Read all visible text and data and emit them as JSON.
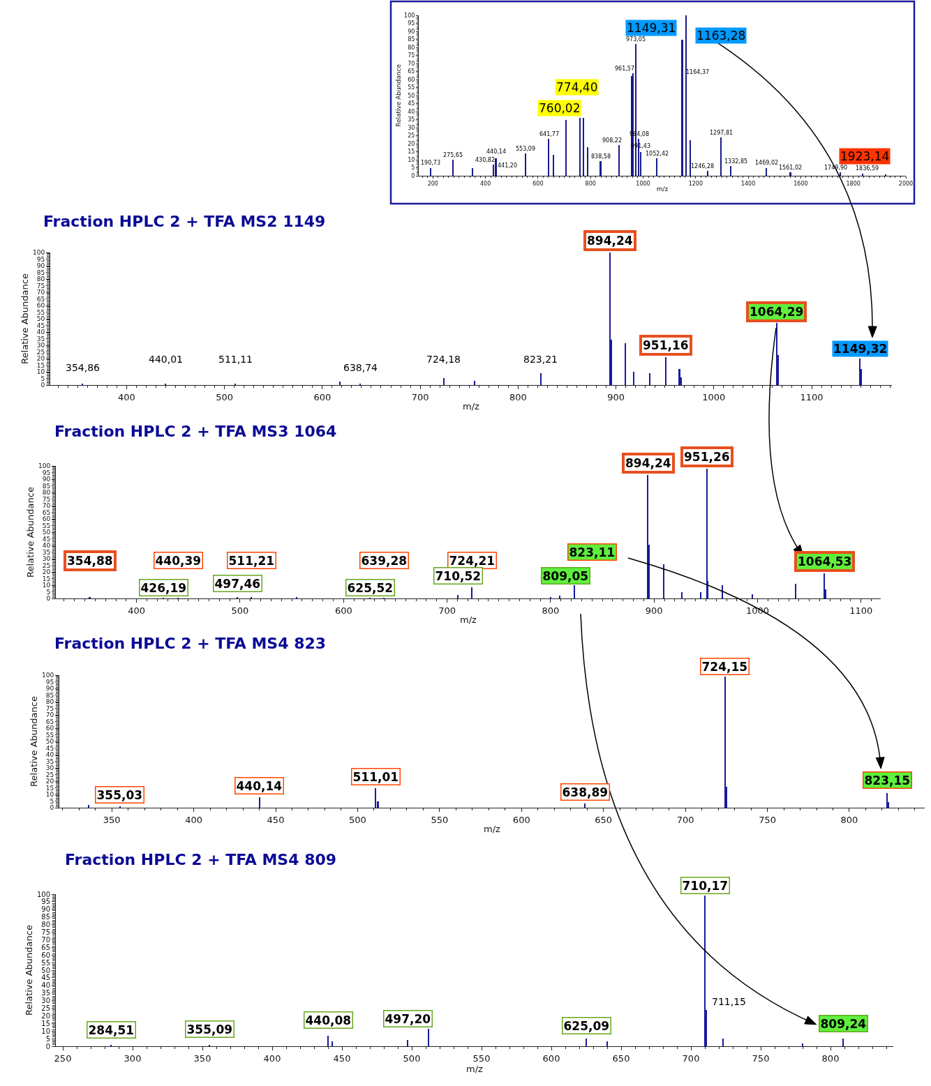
{
  "chart_data": [
    {
      "type": "bar",
      "title": "Fraction HPLC 2 + TFA MS2 1149",
      "xlabel": "m/z",
      "ylabel": "Relative Abundance",
      "color": "#1a1a9c",
      "x": [
        354.86,
        440.01,
        511.11,
        618,
        638.74,
        724.18,
        756,
        823.21,
        894.24,
        895.8,
        910,
        918.6,
        935,
        951.16,
        965,
        967,
        1064.29,
        1066,
        1149.32,
        1151
      ],
      "values": [
        1,
        1,
        1,
        2.5,
        1,
        5.5,
        3,
        8.8,
        100,
        34,
        31.5,
        10,
        9,
        21,
        12,
        6,
        46.6,
        22.7,
        20,
        12
      ],
      "xlim": [
        322,
        1182
      ],
      "ylim": [
        0,
        100
      ],
      "xticks": [
        400,
        500,
        600,
        700,
        800,
        900,
        1000,
        1100
      ],
      "yticks": [
        0,
        5,
        10,
        15,
        20,
        25,
        30,
        35,
        40,
        45,
        50,
        55,
        60,
        65,
        70,
        75,
        80,
        85,
        90,
        95,
        100
      ],
      "annotations": [
        {
          "text": "894,24",
          "x": 894.24,
          "y": 100
        },
        {
          "text": "951,16",
          "x": 951.16,
          "y": 21
        },
        {
          "text": "1064,29",
          "x": 1064.29,
          "y": 46.6
        },
        {
          "text": "1149,32",
          "x": 1149.32,
          "y": 20
        },
        {
          "text": "354,86",
          "x": 354.86,
          "y": 1
        },
        {
          "text": "440,01",
          "x": 440.01,
          "y": 1
        },
        {
          "text": "511,11",
          "x": 511.11,
          "y": 1
        },
        {
          "text": "638,74",
          "x": 638.74,
          "y": 1
        },
        {
          "text": "724,18",
          "x": 724.18,
          "y": 5.5
        },
        {
          "text": "823,21",
          "x": 823.21,
          "y": 8.8
        }
      ]
    },
    {
      "type": "bar",
      "title": "Fraction HPLC 2 + TFA MS3 1064",
      "xlabel": "m/z",
      "ylabel": "Relative Abundance",
      "color": "#1a1a9c",
      "x": [
        354.88,
        426.19,
        440.39,
        497.46,
        511.21,
        555,
        625.52,
        639.28,
        710.52,
        724.21,
        800,
        809.05,
        823.11,
        894.24,
        895,
        909.5,
        927,
        945,
        951.26,
        952,
        966,
        995,
        1037,
        1064.53,
        1066
      ],
      "values": [
        1,
        0.5,
        0.5,
        0.8,
        1,
        1,
        0.5,
        0.5,
        2.4,
        8.3,
        1,
        2,
        10,
        93,
        40.5,
        26,
        5,
        5,
        98,
        13,
        10,
        3,
        11,
        19,
        7
      ],
      "xlim": [
        322,
        1119
      ],
      "ylim": [
        0,
        100
      ],
      "xticks": [
        400,
        500,
        600,
        700,
        800,
        900,
        1000,
        1100
      ],
      "yticks": [
        0,
        5,
        10,
        15,
        20,
        25,
        30,
        35,
        40,
        45,
        50,
        55,
        60,
        65,
        70,
        75,
        80,
        85,
        90,
        95,
        100
      ],
      "annotations": [
        {
          "text": "894,24",
          "x": 894.24,
          "y": 93
        },
        {
          "text": "951,26",
          "x": 951.26,
          "y": 98
        },
        {
          "text": "354,88",
          "x": 354.88,
          "y": 1
        },
        {
          "text": "440,39",
          "x": 440.39,
          "y": 0.5
        },
        {
          "text": "511,21",
          "x": 511.21,
          "y": 1
        },
        {
          "text": "639,28",
          "x": 639.28,
          "y": 0.5
        },
        {
          "text": "724,21",
          "x": 724.21,
          "y": 8.3
        },
        {
          "text": "823,11",
          "x": 823.11,
          "y": 10
        },
        {
          "text": "809,05",
          "x": 809.05,
          "y": 2
        },
        {
          "text": "710,52",
          "x": 710.52,
          "y": 2.4
        },
        {
          "text": "497,46",
          "x": 497.46,
          "y": 0.8
        },
        {
          "text": "426,19",
          "x": 426.19,
          "y": 0.5
        },
        {
          "text": "625,52",
          "x": 625.52,
          "y": 0.5
        },
        {
          "text": "1064,53",
          "x": 1064.53,
          "y": 19
        }
      ]
    },
    {
      "type": "bar",
      "title": "Fraction HPLC 2 + TFA MS4 823",
      "xlabel": "m/z",
      "ylabel": "Relative Abundance",
      "color": "#1a1a9c",
      "x": [
        336,
        355.03,
        440.14,
        511.01,
        512.5,
        638.89,
        724.15,
        725,
        823.15,
        824
      ],
      "values": [
        2,
        1,
        8,
        15,
        5,
        3,
        99,
        16,
        11,
        4
      ],
      "xlim": [
        318,
        846
      ],
      "ylim": [
        0,
        100
      ],
      "xticks": [
        350,
        400,
        450,
        500,
        550,
        600,
        650,
        700,
        750,
        800
      ],
      "yticks": [
        0,
        5,
        10,
        15,
        20,
        25,
        30,
        35,
        40,
        45,
        50,
        55,
        60,
        65,
        70,
        75,
        80,
        85,
        90,
        95,
        100
      ],
      "annotations": [
        {
          "text": "724,15",
          "x": 724.15,
          "y": 99
        },
        {
          "text": "823,15",
          "x": 823.15,
          "y": 11
        },
        {
          "text": "511,01",
          "x": 511.01,
          "y": 15
        },
        {
          "text": "440,14",
          "x": 440.14,
          "y": 8
        },
        {
          "text": "638,89",
          "x": 638.89,
          "y": 3
        },
        {
          "text": "355,03",
          "x": 355.03,
          "y": 1
        }
      ]
    },
    {
      "type": "bar",
      "title": "Fraction HPLC 2 + TFA MS4 809",
      "xlabel": "m/z",
      "ylabel": "Relative Abundance",
      "color": "#1a1a9c",
      "x": [
        284.51,
        355.09,
        440.08,
        443,
        497.2,
        512,
        625.09,
        640,
        710.17,
        711.15,
        723,
        780,
        809.24
      ],
      "values": [
        0.5,
        0.5,
        7,
        3,
        4,
        11.5,
        5,
        3,
        99,
        24,
        5,
        2,
        5
      ],
      "xlim": [
        245,
        845
      ],
      "ylim": [
        0,
        100
      ],
      "xticks": [
        250,
        300,
        350,
        400,
        450,
        500,
        550,
        600,
        650,
        700,
        750,
        800
      ],
      "yticks": [
        0,
        5,
        10,
        15,
        20,
        25,
        30,
        35,
        40,
        45,
        50,
        55,
        60,
        65,
        70,
        75,
        80,
        85,
        90,
        95,
        100
      ],
      "annotations": [
        {
          "text": "710,17",
          "x": 710.17,
          "y": 99
        },
        {
          "text": "809,24",
          "x": 809.24,
          "y": 5
        },
        {
          "text": "625,09",
          "x": 625.09,
          "y": 5
        },
        {
          "text": "497,20",
          "x": 497.2,
          "y": 4
        },
        {
          "text": "440,08",
          "x": 440.08,
          "y": 7
        },
        {
          "text": "355,09",
          "x": 355.09,
          "y": 0.5
        },
        {
          "text": "284,51",
          "x": 284.51,
          "y": 0.5
        },
        {
          "text": "711,15",
          "x": 711.15,
          "y": 24
        }
      ]
    },
    {
      "type": "bar",
      "xlabel": "m/z",
      "ylabel": "Relative Abundance",
      "color": "#1a1a8c",
      "x": [
        190.73,
        275.65,
        350,
        430.82,
        440.14,
        553.09,
        641.77,
        660,
        707,
        760.02,
        774.4,
        790,
        838.58,
        908.22,
        957,
        961.57,
        973.05,
        984.08,
        991.43,
        1052.42,
        1145,
        1149.31,
        1163.28,
        1180,
        1246.28,
        1297.81,
        1332.85,
        1469.02,
        1561.02,
        1749.9,
        1836.59,
        1923.14
      ],
      "values": [
        5,
        10,
        5,
        7,
        11,
        14,
        23,
        13,
        35,
        36,
        36,
        18,
        9,
        19,
        62,
        64,
        82,
        23,
        15,
        11,
        null,
        85,
        100,
        22,
        3,
        24,
        6,
        5,
        2,
        2,
        1.5,
        1
      ],
      "xlim": [
        146,
        2000
      ],
      "ylim": [
        0,
        100
      ],
      "xticks": [
        200,
        400,
        600,
        800,
        1000,
        1200,
        1400,
        1600,
        1800,
        2000
      ],
      "yticks": [
        0,
        5,
        10,
        15,
        20,
        25,
        30,
        35,
        40,
        45,
        50,
        55,
        60,
        65,
        70,
        75,
        80,
        85,
        90,
        95,
        100
      ],
      "annotations": [
        {
          "text": "1149,31",
          "x": 1149.31,
          "y": 85
        },
        {
          "text": "1163,28",
          "x": 1163.28,
          "y": 100
        },
        {
          "text": "774,40",
          "x": 774.4,
          "y": 36
        },
        {
          "text": "760,02",
          "x": 760.02,
          "y": 36
        },
        {
          "text": "1923,14",
          "x": 1923.14,
          "y": 1
        },
        {
          "text": "973,05",
          "x": 973.05,
          "y": 82
        },
        {
          "text": "961,57",
          "x": 961.57,
          "y": 64
        },
        "1164,37",
        {
          "text": "641,77",
          "x": 641.77,
          "y": 23
        },
        {
          "text": "908,22",
          "x": 908.22,
          "y": 19
        },
        {
          "text": "984,08",
          "x": 984.08,
          "y": 23
        },
        {
          "text": "1297,81",
          "x": 1297.81,
          "y": 24
        },
        {
          "text": "553,09",
          "x": 553.09,
          "y": 14
        },
        {
          "text": "991,43",
          "x": 991.43,
          "y": 15
        },
        {
          "text": "1052,42",
          "x": 1052.42,
          "y": 11
        },
        {
          "text": "275,65",
          "x": 275.65,
          "y": 10
        },
        {
          "text": "440,14",
          "x": 440.14,
          "y": 11
        },
        {
          "text": "430,82",
          "x": 430.82,
          "y": 7
        },
        "441,20",
        {
          "text": "190,73",
          "x": 190.73,
          "y": 5
        },
        {
          "text": "838,58",
          "x": 838.58,
          "y": 9
        },
        {
          "text": "1332,85",
          "x": 1332.85,
          "y": 6
        },
        {
          "text": "1246,28",
          "x": 1246.28,
          "y": 3
        },
        {
          "text": "1469,02",
          "x": 1469.02,
          "y": 5
        },
        {
          "text": "1561,02",
          "x": 1561.02,
          "y": 2
        },
        {
          "text": "1749,90",
          "x": 1749.9,
          "y": 2
        },
        {
          "text": "1836,59",
          "x": 1836.59,
          "y": 1.5
        }
      ]
    }
  ]
}
